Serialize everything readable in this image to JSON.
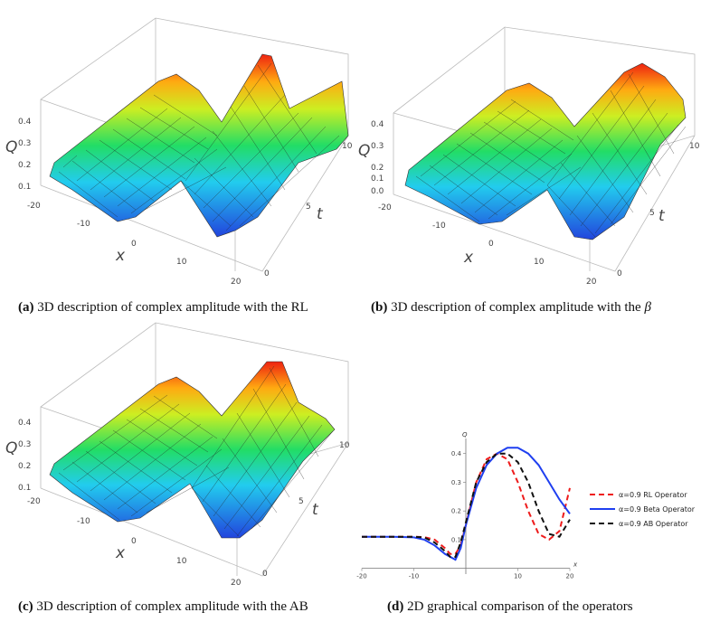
{
  "figures": {
    "a": {
      "tag": "(a)",
      "text": "3D description of complex amplitude with the RL"
    },
    "b": {
      "tag": "(b)",
      "text": "3D description of complex amplitude with the",
      "symbol": "β"
    },
    "c": {
      "tag": "(c)",
      "text": "3D description of complex amplitude with the AB"
    },
    "d": {
      "tag": "(d)",
      "text": "2D graphical comparison of the operators"
    }
  },
  "surface_axes": {
    "q_label": "Q",
    "x_label": "x",
    "t_label": "t",
    "q_ticks_a": [
      "0.4",
      "0.3",
      "0.2",
      "0.1"
    ],
    "q_ticks_b": [
      "0.4",
      "0.3",
      "0.2",
      "0.1",
      "0.0"
    ],
    "x_ticks": [
      "-20",
      "-10",
      "0",
      "10",
      "20"
    ],
    "t_ticks": [
      "0",
      "5",
      "10"
    ]
  },
  "colors": {
    "rl": "#ee1c1c",
    "beta": "#1f3ff0",
    "ab": "#111111"
  },
  "chart_data": {
    "type": "line",
    "title": "",
    "xlabel": "x",
    "ylabel": "Q",
    "xlim": [
      -20,
      20
    ],
    "ylim": [
      -0.02,
      0.44
    ],
    "x_ticks": [
      -20,
      -10,
      10,
      20
    ],
    "y_ticks": [
      0.1,
      0.2,
      0.3,
      0.4
    ],
    "legend_position": "right",
    "series": [
      {
        "name": "α=0.9 RL Operator",
        "style": "dashed",
        "x": [
          -20,
          -14,
          -10,
          -8,
          -6,
          -4,
          -3,
          -2,
          -1,
          0,
          2,
          4,
          6,
          8,
          10,
          12,
          14,
          16,
          18,
          20
        ],
        "y": [
          0.11,
          0.11,
          0.11,
          0.109,
          0.1,
          0.07,
          0.05,
          0.05,
          0.08,
          0.15,
          0.3,
          0.38,
          0.4,
          0.38,
          0.3,
          0.2,
          0.12,
          0.1,
          0.13,
          0.28
        ]
      },
      {
        "name": "α=0.9 Beta Operator",
        "style": "solid",
        "x": [
          -20,
          -14,
          -10,
          -8,
          -6,
          -4,
          -2,
          -1,
          0,
          2,
          4,
          6,
          8,
          10,
          12,
          14,
          16,
          18,
          20
        ],
        "y": [
          0.11,
          0.11,
          0.108,
          0.1,
          0.08,
          0.05,
          0.03,
          0.07,
          0.15,
          0.28,
          0.36,
          0.4,
          0.42,
          0.42,
          0.4,
          0.36,
          0.3,
          0.24,
          0.19
        ]
      },
      {
        "name": "α=0.9 AB Operator",
        "style": "dashed",
        "x": [
          -20,
          -14,
          -10,
          -8,
          -6,
          -4,
          -3,
          -2,
          -1,
          0,
          2,
          4,
          6,
          8,
          10,
          12,
          14,
          16,
          18,
          20
        ],
        "y": [
          0.11,
          0.11,
          0.11,
          0.108,
          0.09,
          0.06,
          0.04,
          0.04,
          0.09,
          0.16,
          0.3,
          0.37,
          0.4,
          0.4,
          0.37,
          0.3,
          0.2,
          0.12,
          0.11,
          0.17
        ]
      }
    ]
  }
}
